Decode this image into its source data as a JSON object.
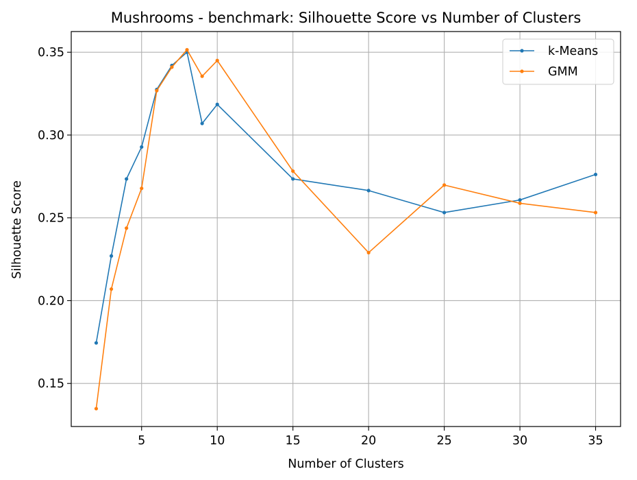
{
  "chart_data": {
    "type": "line",
    "title": "Mushrooms - benchmark: Silhouette Score vs Number of Clusters",
    "xlabel": "Number of Clusters",
    "ylabel": "Silhouette Score",
    "xlim": [
      0.35,
      36.65
    ],
    "ylim": [
      0.124,
      0.3625
    ],
    "xticks": [
      5,
      10,
      15,
      20,
      25,
      30,
      35
    ],
    "yticks": [
      0.15,
      0.2,
      0.25,
      0.3,
      0.35
    ],
    "ytick_labels": [
      "0.15",
      "0.20",
      "0.25",
      "0.30",
      "0.35"
    ],
    "grid": true,
    "legend_position": "top-right",
    "series": [
      {
        "name": "k-Means",
        "color": "#1f77b4",
        "x": [
          2,
          3,
          4,
          5,
          6,
          7,
          8,
          9,
          10,
          15,
          20,
          25,
          30,
          35
        ],
        "y": [
          0.1745,
          0.227,
          0.2735,
          0.2928,
          0.3275,
          0.342,
          0.35,
          0.307,
          0.3185,
          0.2735,
          0.2665,
          0.2532,
          0.2608,
          0.2762
        ]
      },
      {
        "name": "GMM",
        "color": "#ff7f0e",
        "x": [
          2,
          3,
          4,
          5,
          6,
          7,
          8,
          9,
          10,
          15,
          20,
          25,
          30,
          35
        ],
        "y": [
          0.1348,
          0.207,
          0.2438,
          0.2678,
          0.3268,
          0.341,
          0.3515,
          0.3355,
          0.345,
          0.2782,
          0.229,
          0.2698,
          0.2588,
          0.2532
        ]
      }
    ]
  }
}
